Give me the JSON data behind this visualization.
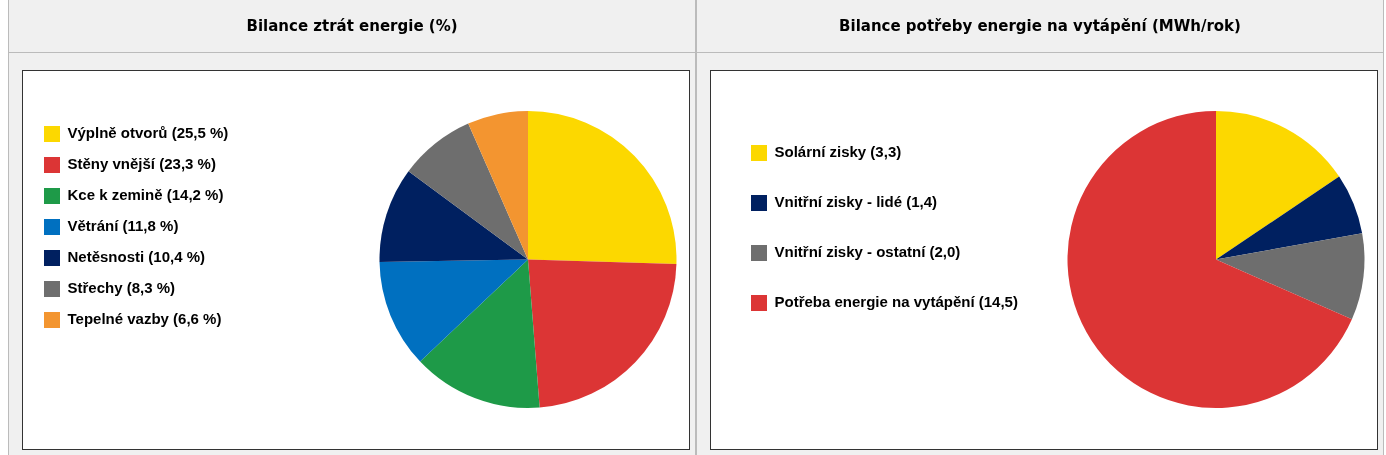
{
  "chart_data": [
    {
      "type": "pie",
      "title": "Bilance ztrát energie (%)",
      "legend": "left",
      "categories": [
        "Výplně otvorů (25,5 %)",
        "Stěny vnější (23,3 %)",
        "Kce k zemině (14,2 %)",
        "Větrání (11,8 %)",
        "Netěsnosti (10,4 %)",
        "Střechy (8,3 %)",
        "Tepelné vazby (6,6 %)"
      ],
      "values": [
        25.5,
        23.3,
        14.2,
        11.8,
        10.4,
        8.3,
        6.6
      ],
      "colors": [
        "#fcd800",
        "#dc3535",
        "#1e9a48",
        "#0070c0",
        "#002060",
        "#6e6e6e",
        "#f39530"
      ]
    },
    {
      "type": "pie",
      "title": "Bilance potřeby energie na vytápění (MWh/rok)",
      "legend": "left",
      "categories": [
        "Solární zisky (3,3)",
        "Vnitřní zisky - lidé (1,4)",
        "Vnitřní zisky - ostatní (2,0)",
        "Potřeba energie na vytápění (14,5)"
      ],
      "values": [
        3.3,
        1.4,
        2.0,
        14.5
      ],
      "colors": [
        "#fcd800",
        "#002060",
        "#6e6e6e",
        "#dc3535"
      ]
    }
  ]
}
